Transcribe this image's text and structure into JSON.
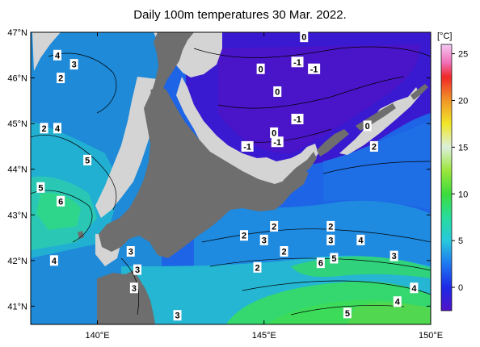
{
  "title": "Daily 100m temperatures 30 Mar. 2022.",
  "map": {
    "lat_ticks": [
      {
        "value": 47,
        "label": "47°N"
      },
      {
        "value": 46,
        "label": "46°N"
      },
      {
        "value": 45,
        "label": "45°N"
      },
      {
        "value": 44,
        "label": "44°N"
      },
      {
        "value": 43,
        "label": "43°N"
      },
      {
        "value": 42,
        "label": "42°N"
      },
      {
        "value": 41,
        "label": "41°N"
      }
    ],
    "lon_ticks": [
      {
        "value": 140,
        "label": "140°E"
      },
      {
        "value": 145,
        "label": "145°E"
      },
      {
        "value": 150,
        "label": "150°E"
      }
    ],
    "lon_range": [
      138,
      150
    ],
    "lat_range": [
      40.6,
      47
    ],
    "land_color": "#6e6e6e",
    "ice_color": "#d4d4d4",
    "contour_labels": [
      {
        "text": "4",
        "lon": 138.8,
        "lat": 46.5
      },
      {
        "text": "3",
        "lon": 139.3,
        "lat": 46.3
      },
      {
        "text": "2",
        "lon": 138.9,
        "lat": 46.0
      },
      {
        "text": "2",
        "lon": 138.4,
        "lat": 44.9
      },
      {
        "text": "4",
        "lon": 138.8,
        "lat": 44.9
      },
      {
        "text": "5",
        "lon": 139.7,
        "lat": 44.2
      },
      {
        "text": "5",
        "lon": 138.3,
        "lat": 43.6
      },
      {
        "text": "6",
        "lon": 138.9,
        "lat": 43.3
      },
      {
        "text": "4",
        "lon": 138.7,
        "lat": 42.0
      },
      {
        "text": "3",
        "lon": 141.0,
        "lat": 42.2
      },
      {
        "text": "3",
        "lon": 141.2,
        "lat": 41.8
      },
      {
        "text": "3",
        "lon": 141.1,
        "lat": 41.4
      },
      {
        "text": "3",
        "lon": 142.4,
        "lat": 40.8
      },
      {
        "text": "0",
        "lon": 146.2,
        "lat": 46.9
      },
      {
        "text": "-1",
        "lon": 146.0,
        "lat": 46.35
      },
      {
        "text": "-1",
        "lon": 146.5,
        "lat": 46.2
      },
      {
        "text": "0",
        "lon": 144.9,
        "lat": 46.2
      },
      {
        "text": "0",
        "lon": 145.4,
        "lat": 45.7
      },
      {
        "text": "-1",
        "lon": 146.0,
        "lat": 45.1
      },
      {
        "text": "0",
        "lon": 145.3,
        "lat": 44.8
      },
      {
        "text": "-1",
        "lon": 145.4,
        "lat": 44.6
      },
      {
        "text": "-1",
        "lon": 144.5,
        "lat": 44.5
      },
      {
        "text": "0",
        "lon": 148.1,
        "lat": 44.95
      },
      {
        "text": "2",
        "lon": 148.3,
        "lat": 44.5
      },
      {
        "text": "2",
        "lon": 144.4,
        "lat": 42.55
      },
      {
        "text": "3",
        "lon": 145.0,
        "lat": 42.45
      },
      {
        "text": "2",
        "lon": 145.3,
        "lat": 42.75
      },
      {
        "text": "2",
        "lon": 145.6,
        "lat": 42.2
      },
      {
        "text": "2",
        "lon": 144.8,
        "lat": 41.85
      },
      {
        "text": "2",
        "lon": 147.0,
        "lat": 42.75
      },
      {
        "text": "3",
        "lon": 147.0,
        "lat": 42.45
      },
      {
        "text": "4",
        "lon": 147.9,
        "lat": 42.45
      },
      {
        "text": "5",
        "lon": 147.1,
        "lat": 42.05
      },
      {
        "text": "6",
        "lon": 146.7,
        "lat": 41.95
      },
      {
        "text": "3",
        "lon": 148.9,
        "lat": 42.1
      },
      {
        "text": "4",
        "lon": 149.5,
        "lat": 41.4
      },
      {
        "text": "4",
        "lon": 149.0,
        "lat": 41.1
      },
      {
        "text": "5",
        "lon": 147.5,
        "lat": 40.85
      }
    ]
  },
  "colorbar": {
    "unit": "[°C]",
    "min": -2.5,
    "max": 26,
    "ticks": [
      {
        "value": 25,
        "label": "25"
      },
      {
        "value": 20,
        "label": "20"
      },
      {
        "value": 15,
        "label": "15"
      },
      {
        "value": 10,
        "label": "10"
      },
      {
        "value": 5,
        "label": "5"
      },
      {
        "value": 0,
        "label": "0"
      }
    ],
    "stops": [
      {
        "value": -2.5,
        "color": "#5014c8"
      },
      {
        "value": 0,
        "color": "#1e28e6"
      },
      {
        "value": 2.5,
        "color": "#1e78f0"
      },
      {
        "value": 5,
        "color": "#28c8dc"
      },
      {
        "value": 7.5,
        "color": "#28dc9c"
      },
      {
        "value": 10,
        "color": "#3cdc3c"
      },
      {
        "value": 12.5,
        "color": "#9ce63c"
      },
      {
        "value": 15,
        "color": "#dcf0dc"
      },
      {
        "value": 17.5,
        "color": "#f0e628"
      },
      {
        "value": 20,
        "color": "#f09628"
      },
      {
        "value": 22.5,
        "color": "#f02828"
      },
      {
        "value": 24,
        "color": "#f06eb4"
      },
      {
        "value": 26,
        "color": "#f5c8f5"
      }
    ]
  }
}
